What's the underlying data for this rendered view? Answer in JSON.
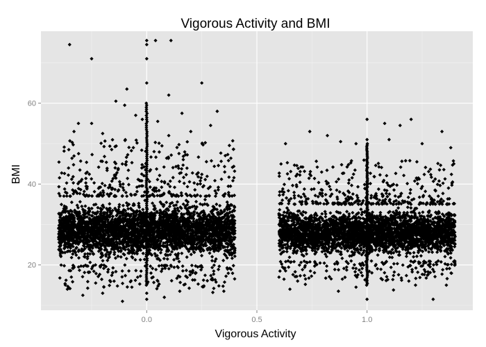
{
  "chart_data": {
    "type": "scatter",
    "title": "Vigorous Activity and BMI",
    "xlabel": "Vigorous Activity",
    "ylabel": "BMI",
    "xlim": [
      -0.48,
      1.48
    ],
    "ylim": [
      8.8,
      77.8
    ],
    "x_ticks": [
      0.0,
      0.5,
      1.0
    ],
    "x_tick_labels": [
      "0.0",
      "0.5",
      "1.0"
    ],
    "y_ticks": [
      20,
      40,
      60
    ],
    "y_tick_labels": [
      "20",
      "40",
      "60"
    ],
    "x_minor_ticks": [
      -0.25,
      0.25,
      0.75,
      1.25
    ],
    "y_minor_ticks": [
      10,
      30,
      50,
      70
    ],
    "grid": true,
    "legend": "none",
    "panel_color": "#e5e5e5",
    "grid_color": "#ffffff",
    "point_color": "#000000",
    "axis_text_color": "#7f7f7f",
    "groups": [
      {
        "x_center": 0.0,
        "jitter_width": 0.4,
        "dense_band": [
          15,
          41
        ],
        "notable_points": [
          [
            -0.35,
            74.5
          ],
          [
            -0.25,
            71
          ],
          [
            0.0,
            75.5
          ],
          [
            0.0,
            74.5
          ],
          [
            0.04,
            75.5
          ],
          [
            0.11,
            75.5
          ],
          [
            0.0,
            71
          ],
          [
            0.0,
            65
          ],
          [
            0.25,
            65
          ],
          [
            -0.09,
            63.5
          ],
          [
            -0.14,
            60.5
          ],
          [
            0.1,
            62
          ],
          [
            -0.1,
            59.5
          ],
          [
            0.32,
            58
          ],
          [
            0.16,
            57.5
          ],
          [
            -0.31,
            55
          ],
          [
            -0.25,
            55
          ],
          [
            0.29,
            54.5
          ],
          [
            0.05,
            55.5
          ],
          [
            -0.02,
            56
          ],
          [
            -0.33,
            53
          ],
          [
            0.2,
            53
          ],
          [
            -0.05,
            57
          ],
          [
            0.1,
            52
          ],
          [
            -0.2,
            52.5
          ],
          [
            0.0,
            13
          ],
          [
            0.0,
            11.5
          ],
          [
            -0.11,
            11
          ],
          [
            0.08,
            12
          ],
          [
            -0.29,
            12.5
          ],
          [
            0.35,
            13.5
          ],
          [
            -0.2,
            13
          ],
          [
            0.3,
            13.2
          ],
          [
            -0.36,
            14
          ],
          [
            0.15,
            13.5
          ]
        ]
      },
      {
        "x_center": 1.0,
        "jitter_width": 0.4,
        "dense_band": [
          16,
          39
        ],
        "notable_points": [
          [
            1.0,
            56
          ],
          [
            1.2,
            56
          ],
          [
            1.34,
            53
          ],
          [
            0.74,
            53
          ],
          [
            0.63,
            50
          ],
          [
            1.0,
            51
          ],
          [
            0.95,
            50
          ],
          [
            1.1,
            51
          ],
          [
            1.15,
            54.5
          ],
          [
            0.88,
            50.5
          ],
          [
            1.08,
            55
          ],
          [
            1.25,
            50
          ],
          [
            0.82,
            52
          ],
          [
            1.38,
            49
          ],
          [
            1.0,
            11.5
          ],
          [
            1.3,
            11.5
          ],
          [
            0.87,
            13.5
          ],
          [
            1.12,
            13.8
          ],
          [
            0.65,
            14
          ],
          [
            1.36,
            15
          ],
          [
            0.72,
            15.2
          ],
          [
            1.22,
            15
          ],
          [
            0.95,
            14.5
          ]
        ]
      }
    ],
    "spikes": [
      {
        "x": 0.0,
        "y_from": 15,
        "y_to": 60
      },
      {
        "x": 1.0,
        "y_from": 15,
        "y_to": 50
      }
    ]
  }
}
